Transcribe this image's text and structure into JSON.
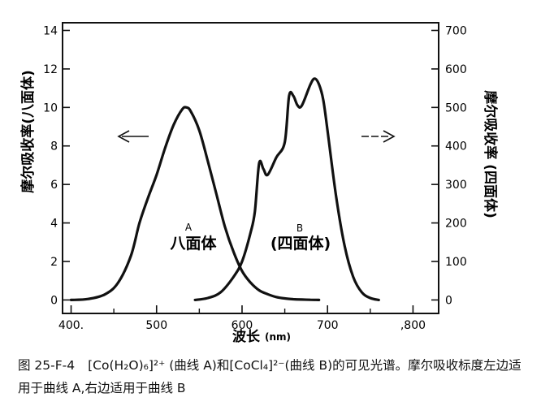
{
  "chart_data": {
    "type": "line",
    "xlabel": "波长",
    "xunit": "(nm)",
    "x_ticks": [
      "400.",
      "500",
      "600",
      "700",
      ",800"
    ],
    "xlim": [
      390,
      830
    ],
    "y_left": {
      "label": "摩尔吸收率(八面体)",
      "ylim": [
        -0.7,
        14.4
      ],
      "ticks": [
        "0",
        "2",
        "4",
        "6",
        "8",
        "10",
        "12",
        "14"
      ]
    },
    "y_right": {
      "label": "摩尔吸收率 (四面体)",
      "ylim": [
        -35,
        720
      ],
      "ticks": [
        "0",
        "100",
        "200",
        "300",
        "400",
        "500",
        "600",
        "700"
      ]
    },
    "grid": false,
    "series": [
      {
        "name": "A",
        "label": "八面体",
        "axis": "left",
        "x": [
          400,
          420,
          440,
          455,
          470,
          480,
          490,
          500,
          510,
          520,
          530,
          535,
          540,
          550,
          560,
          570,
          580,
          590,
          600,
          610,
          620,
          630,
          640,
          650,
          660,
          670,
          680,
          690
        ],
        "y": [
          0.0,
          0.05,
          0.3,
          0.9,
          2.3,
          4.0,
          5.3,
          6.5,
          7.9,
          9.1,
          9.9,
          10.0,
          9.8,
          8.8,
          7.2,
          5.5,
          3.8,
          2.5,
          1.5,
          0.9,
          0.5,
          0.3,
          0.15,
          0.08,
          0.04,
          0.02,
          0.01,
          0.0
        ]
      },
      {
        "name": "B",
        "label": "(四面体)",
        "axis": "right",
        "x": [
          545,
          560,
          575,
          590,
          600,
          610,
          615,
          620,
          625,
          630,
          640,
          650,
          655,
          660,
          665,
          670,
          680,
          685,
          690,
          695,
          700,
          710,
          720,
          730,
          740,
          750,
          760
        ],
        "y": [
          0,
          5,
          20,
          60,
          100,
          175,
          230,
          355,
          340,
          325,
          370,
          410,
          530,
          530,
          505,
          505,
          560,
          575,
          560,
          520,
          440,
          270,
          140,
          60,
          20,
          5,
          0
        ]
      }
    ],
    "annotations": {
      "left_arrow": "left",
      "right_arrow": "right"
    }
  },
  "caption": {
    "label": "图 25-F-4",
    "text": "[Co(H₂O)₆]²⁺ (曲线 A)和[CoCl₄]²⁻(曲线 B)的可见光谱。摩尔吸收标度左边适用于曲线 A,右边适用于曲线 B"
  }
}
